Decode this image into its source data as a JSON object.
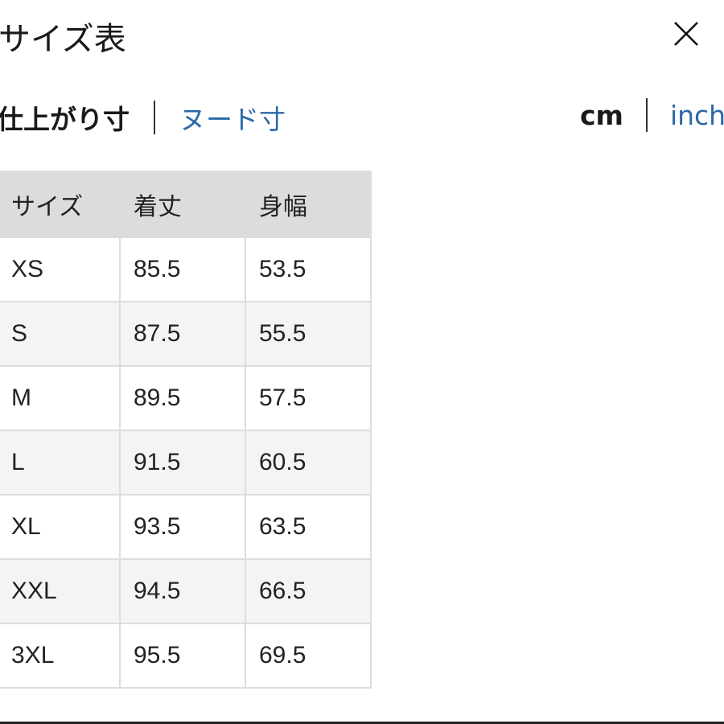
{
  "header": {
    "title": "サイズ表",
    "close_icon": "close-icon"
  },
  "measure_tabs": [
    {
      "label": "仕上がり寸",
      "active": true
    },
    {
      "label": "ヌード寸",
      "active": false
    }
  ],
  "unit_tabs": [
    {
      "label": "cm",
      "active": true
    },
    {
      "label": "inch",
      "active": false
    }
  ],
  "colors": {
    "link": "#2a68a8",
    "header_bg": "#dcdcdc",
    "alt_row": "#f4f4f4"
  },
  "table": {
    "columns": [
      "サイズ",
      "着丈",
      "身幅"
    ],
    "rows": [
      [
        "XS",
        "85.5",
        "53.5"
      ],
      [
        "S",
        "87.5",
        "55.5"
      ],
      [
        "M",
        "89.5",
        "57.5"
      ],
      [
        "L",
        "91.5",
        "60.5"
      ],
      [
        "XL",
        "93.5",
        "63.5"
      ],
      [
        "XXL",
        "94.5",
        "66.5"
      ],
      [
        "3XL",
        "95.5",
        "69.5"
      ]
    ]
  }
}
